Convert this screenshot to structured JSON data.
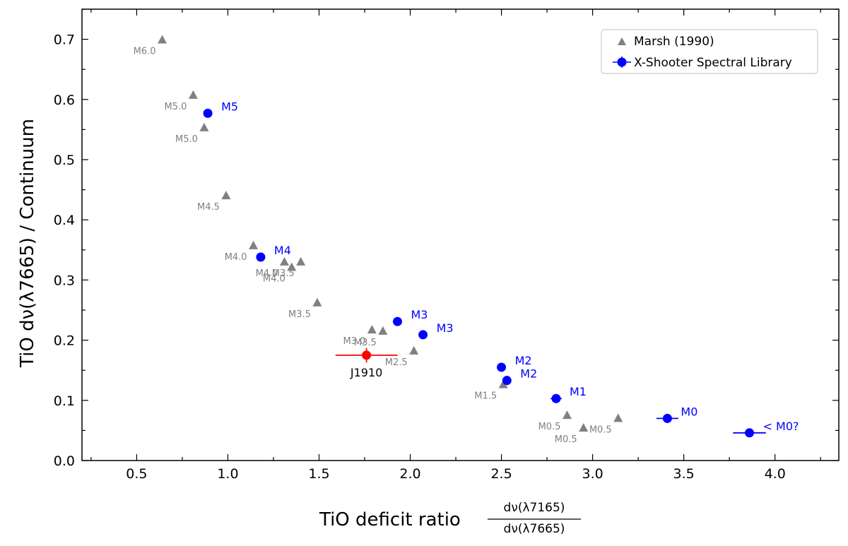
{
  "chart_data": {
    "type": "scatter",
    "xlabel": "TiO deficit ratio",
    "xlabel_fraction": {
      "numerator": "dν(λ7165)",
      "denominator": "dν(λ7665)"
    },
    "ylabel": "TiO dν(λ7665) / Continuum",
    "xlim": [
      0.2,
      4.35
    ],
    "ylim": [
      0.0,
      0.75
    ],
    "xticks": [
      "0.5",
      "1.0",
      "1.5",
      "2.0",
      "2.5",
      "3.0",
      "3.5",
      "4.0"
    ],
    "yticks": [
      "0.0",
      "0.1",
      "0.2",
      "0.3",
      "0.4",
      "0.5",
      "0.6",
      "0.7"
    ],
    "legend": {
      "position": "top-right",
      "entries": [
        "Marsh (1990)",
        "X-Shooter Spectral Library"
      ]
    },
    "colors": {
      "marsh": "#808080",
      "xsl": "#0000ff",
      "target": "#ff0000"
    },
    "series": [
      {
        "name": "Marsh (1990)",
        "marker": "triangle",
        "points": [
          {
            "x": 0.64,
            "y": 0.699,
            "label": "M6.0"
          },
          {
            "x": 0.81,
            "y": 0.607,
            "label": "M5.0"
          },
          {
            "x": 0.87,
            "y": 0.553,
            "label": "M5.0"
          },
          {
            "x": 0.99,
            "y": 0.44,
            "label": "M4.5"
          },
          {
            "x": 1.14,
            "y": 0.357,
            "label": "M4.0"
          },
          {
            "x": 1.31,
            "y": 0.33,
            "label": "M4.0"
          },
          {
            "x": 1.35,
            "y": 0.321,
            "label": "M4.0"
          },
          {
            "x": 1.4,
            "y": 0.33,
            "label": "M3.5"
          },
          {
            "x": 1.49,
            "y": 0.262,
            "label": "M3.5"
          },
          {
            "x": 1.79,
            "y": 0.217,
            "label": "M3.0"
          },
          {
            "x": 1.85,
            "y": 0.215,
            "label": "M3.5"
          },
          {
            "x": 2.02,
            "y": 0.182,
            "label": "M2.5"
          },
          {
            "x": 2.51,
            "y": 0.126,
            "label": "M1.5"
          },
          {
            "x": 2.86,
            "y": 0.075,
            "label": "M0.5"
          },
          {
            "x": 2.95,
            "y": 0.054,
            "label": "M0.5"
          },
          {
            "x": 3.14,
            "y": 0.07,
            "label": "M0.5"
          }
        ]
      },
      {
        "name": "X-Shooter Spectral Library",
        "marker": "circle",
        "points": [
          {
            "x": 0.89,
            "y": 0.577,
            "label": "M5",
            "xerr": 0
          },
          {
            "x": 1.18,
            "y": 0.338,
            "label": "M4",
            "xerr": 0
          },
          {
            "x": 1.93,
            "y": 0.231,
            "label": "M3",
            "xerr": 0
          },
          {
            "x": 2.07,
            "y": 0.209,
            "label": "M3",
            "xerr": 0
          },
          {
            "x": 2.5,
            "y": 0.155,
            "label": "M2",
            "xerr": 0
          },
          {
            "x": 2.53,
            "y": 0.133,
            "label": "M2",
            "xerr": 0
          },
          {
            "x": 2.8,
            "y": 0.103,
            "label": "M1",
            "xerr": 0.03
          },
          {
            "x": 3.41,
            "y": 0.07,
            "label": "M0",
            "xerr": 0.06
          },
          {
            "x": 3.86,
            "y": 0.046,
            "label": "< M0?",
            "xerr": 0.09
          }
        ]
      },
      {
        "name": "J1910",
        "marker": "circle",
        "points": [
          {
            "x": 1.76,
            "y": 0.175,
            "label": "J1910",
            "xerr": 0.17,
            "yerr": 0.012
          }
        ]
      }
    ]
  }
}
